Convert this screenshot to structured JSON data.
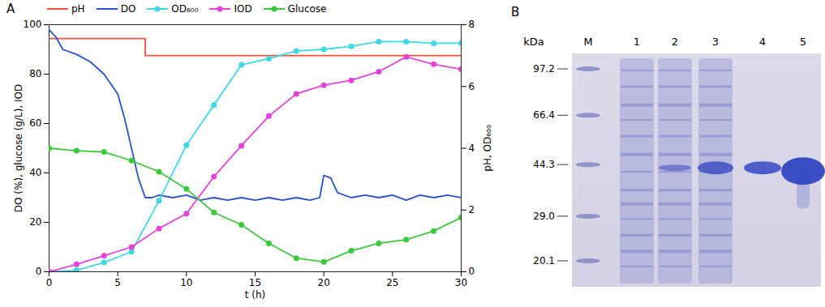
{
  "chart_data": {
    "type": "line",
    "title": "A",
    "legend": "top",
    "grid": false,
    "xlabel": "t (h)",
    "ylabel": "DO (%), glucose (g/L), IOD",
    "y2label": "pH, OD₆₀₀",
    "xlim": [
      0,
      30
    ],
    "xticks": [
      0,
      5,
      10,
      15,
      20,
      25,
      30
    ],
    "ylim": [
      0,
      100
    ],
    "yticks": [
      0,
      20,
      40,
      60,
      80,
      100
    ],
    "y2lim": [
      0,
      8
    ],
    "y2ticks": [
      0,
      2,
      4,
      6,
      8
    ],
    "series": [
      {
        "name": "pH",
        "color": "#e8553a",
        "axis": "y2",
        "marker": "none",
        "x": [
          0,
          7,
          7,
          30
        ],
        "values": [
          7.55,
          7.55,
          7.0,
          7.0
        ]
      },
      {
        "name": "DO",
        "color": "#2a52cc",
        "axis": "y",
        "marker": "none",
        "x": [
          0,
          0.5,
          1,
          2,
          3,
          4,
          5,
          5.5,
          6,
          6.5,
          7,
          7.5,
          8,
          9,
          10,
          11,
          12,
          13,
          14,
          15,
          16,
          17,
          18,
          19,
          19.7,
          20,
          20.5,
          21,
          22,
          23,
          24,
          25,
          26,
          27,
          28,
          29,
          30
        ],
        "values": [
          98,
          95,
          90,
          88,
          85,
          80,
          72,
          62,
          50,
          38,
          30,
          30,
          31,
          30,
          31,
          29,
          30,
          29,
          30,
          29,
          30,
          29,
          30,
          29,
          30,
          39,
          38,
          32,
          30,
          31,
          30,
          31,
          29,
          31,
          30,
          31,
          30
        ]
      },
      {
        "name": "OD₆₀₀",
        "color": "#3fd9e6",
        "axis": "y2",
        "marker": "circle",
        "x": [
          0,
          2,
          4,
          6,
          8,
          10,
          12,
          14,
          16,
          18,
          20,
          22,
          24,
          26,
          28,
          30
        ],
        "values": [
          0,
          0.05,
          0.3,
          0.65,
          2.3,
          4.1,
          5.4,
          6.7,
          6.9,
          7.15,
          7.2,
          7.3,
          7.45,
          7.45,
          7.4,
          7.4
        ]
      },
      {
        "name": "IOD",
        "color": "#e444d6",
        "axis": "y",
        "marker": "circle",
        "x": [
          0,
          2,
          4,
          6,
          8,
          10,
          12,
          14,
          16,
          18,
          20,
          22,
          24,
          26,
          28,
          30
        ],
        "values": [
          0,
          3,
          6.5,
          10,
          17.5,
          23.5,
          38.5,
          51,
          63,
          72,
          75.5,
          77.5,
          81,
          87,
          84,
          82
        ]
      },
      {
        "name": "Glucose",
        "color": "#3cc83c",
        "axis": "y",
        "marker": "circle",
        "x": [
          0,
          2,
          4,
          6,
          8,
          10,
          12,
          14,
          16,
          18,
          20,
          22,
          24,
          26,
          28,
          30
        ],
        "values": [
          50,
          49,
          48.5,
          45,
          40.5,
          33.5,
          24,
          19,
          11.5,
          5.5,
          4,
          8.5,
          11.5,
          13,
          16.5,
          22
        ]
      }
    ]
  },
  "gel": {
    "label": "B",
    "unit": "kDa",
    "lanes": [
      "M",
      "1",
      "2",
      "3",
      "4",
      "5"
    ],
    "markers": [
      97.2,
      66.4,
      44.3,
      {
        "value": 29,
        "label": "29.0"
      },
      20.1
    ]
  }
}
